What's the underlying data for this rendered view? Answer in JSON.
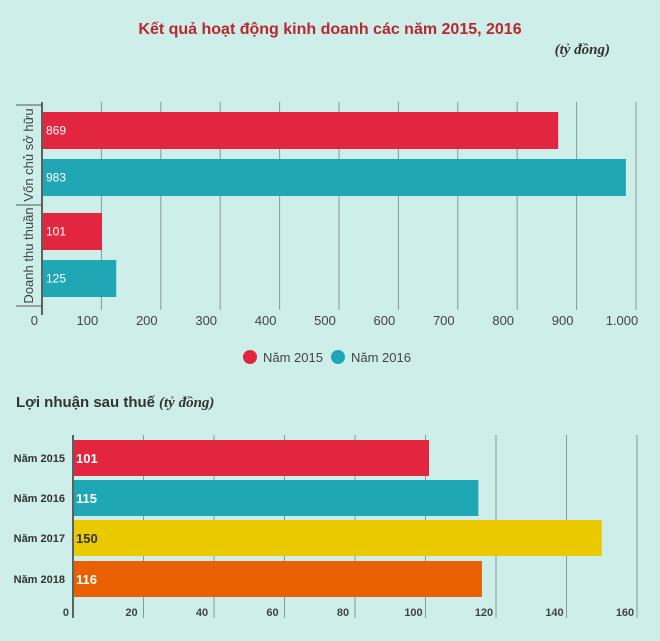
{
  "chart_data": [
    {
      "type": "bar",
      "orientation": "horizontal",
      "title": "Kết quả hoạt động kinh doanh các năm 2015, 2016",
      "unit": "(tỷ đồng)",
      "categories": [
        "Vốn chủ sở hữu",
        "Doanh thu thuần"
      ],
      "series": [
        {
          "name": "Năm 2015",
          "color": "#e2263f",
          "values": [
            869,
            101
          ]
        },
        {
          "name": "Năm 2016",
          "color": "#1fa7b5",
          "values": [
            983,
            125
          ]
        }
      ],
      "xlim": [
        0,
        1000
      ],
      "ticks": [
        "0",
        "100",
        "200",
        "300",
        "400",
        "500",
        "600",
        "700",
        "800",
        "900",
        "1.000"
      ],
      "tick_values": [
        0,
        100,
        200,
        300,
        400,
        500,
        600,
        700,
        800,
        900,
        1000
      ],
      "grid": true,
      "legend": "bottom"
    },
    {
      "type": "bar",
      "orientation": "horizontal",
      "title": "Lợi nhuận sau thuế",
      "unit": "(tỷ đồng)",
      "categories": [
        "Năm 2015",
        "Năm 2016",
        "Năm 2017",
        "Năm 2018"
      ],
      "values": [
        101,
        115,
        150,
        116
      ],
      "colors": [
        "#e2263f",
        "#1fa7b5",
        "#ebc900",
        "#e86000"
      ],
      "label_colors": [
        "#ffffff",
        "#ffffff",
        "#333333",
        "#ffffff"
      ],
      "xlim": [
        0,
        160
      ],
      "ticks": [
        "0",
        "20",
        "40",
        "60",
        "80",
        "100",
        "120",
        "140",
        "160"
      ],
      "tick_values": [
        0,
        20,
        40,
        60,
        80,
        100,
        120,
        140,
        160
      ],
      "grid": true
    }
  ]
}
